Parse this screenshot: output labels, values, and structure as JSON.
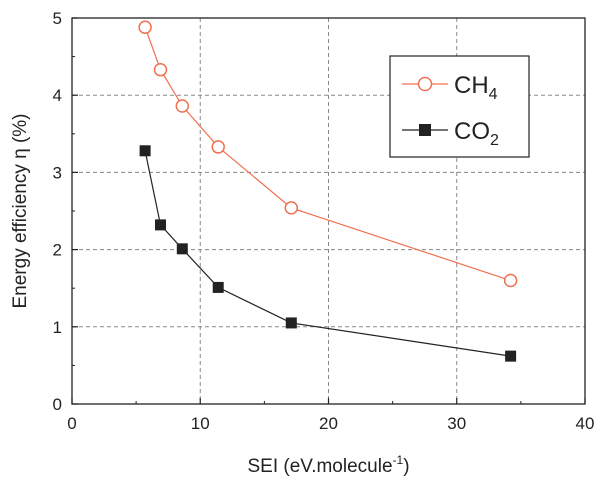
{
  "chart_data": {
    "type": "line",
    "xlabel": "SEI (eV.molecule",
    "xlabel_superscript": "-1",
    "xlabel_close": ")",
    "ylabel": "Energy efficiency η (%)",
    "xlim": [
      0,
      40
    ],
    "ylim": [
      0,
      5
    ],
    "xticks": [
      0,
      10,
      20,
      30,
      40
    ],
    "yticks": [
      0,
      1,
      2,
      3,
      4,
      5
    ],
    "grid": true,
    "grid_style": "dashed",
    "legend_position": "top-right",
    "series": [
      {
        "name": "CH",
        "name_subscript": "4",
        "color": "#f07050",
        "marker": "open-circle",
        "x": [
          5.7,
          6.9,
          8.6,
          11.4,
          17.1,
          34.2
        ],
        "y": [
          4.88,
          4.33,
          3.86,
          3.33,
          2.54,
          1.6
        ]
      },
      {
        "name": "CO",
        "name_subscript": "2",
        "color": "#222222",
        "marker": "filled-square",
        "x": [
          5.7,
          6.9,
          8.6,
          11.4,
          17.1,
          34.2
        ],
        "y": [
          3.28,
          2.32,
          2.01,
          1.51,
          1.05,
          0.62
        ]
      }
    ]
  }
}
